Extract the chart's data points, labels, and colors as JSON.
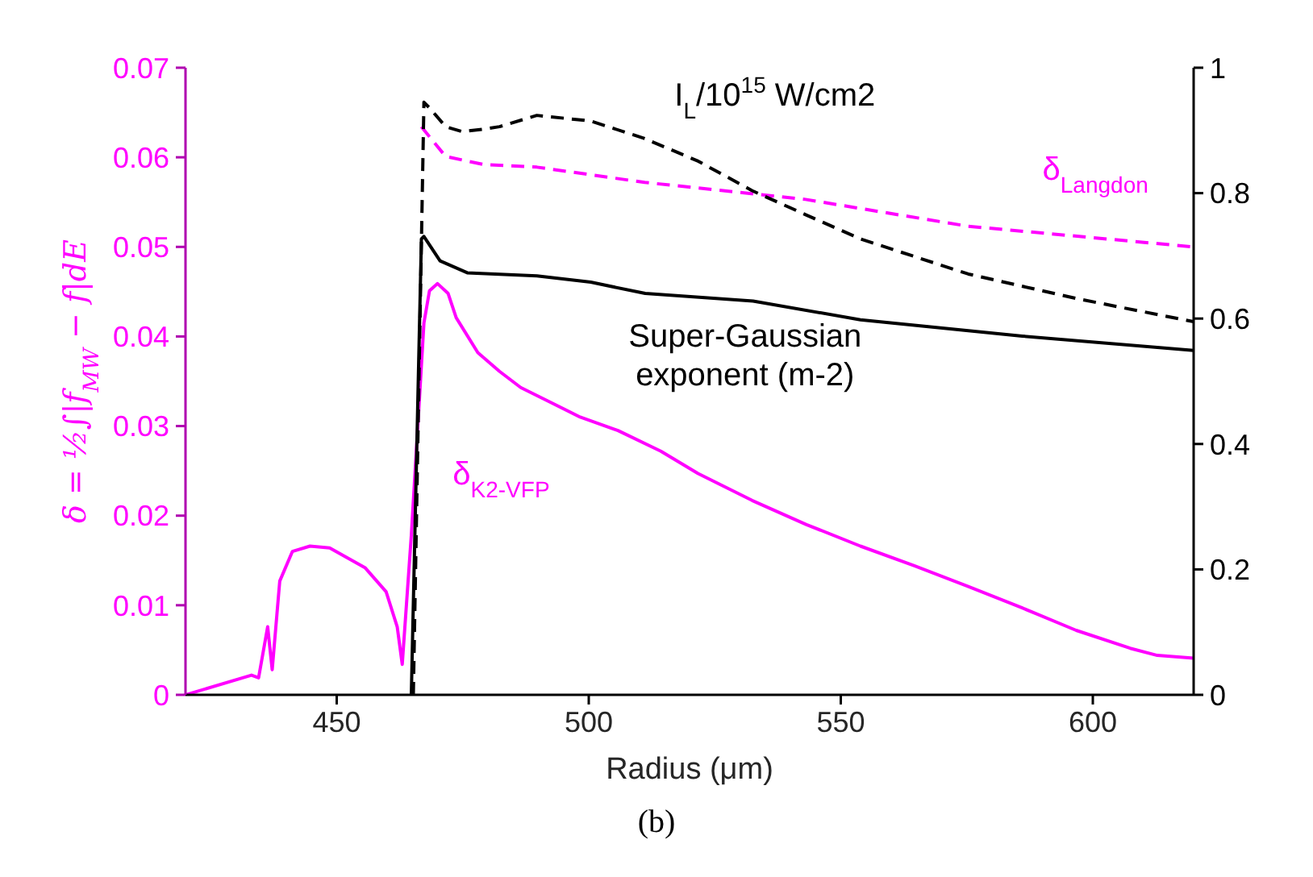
{
  "chart_data": {
    "type": "line",
    "xlabel": "Radius (μm)",
    "ylabel": "δ = ½∫|f$_{MW}$ − f|dE",
    "xlim": [
      420,
      620
    ],
    "xticks": [
      450,
      500,
      550,
      600
    ],
    "ylim": [
      0,
      0.07
    ],
    "yticks": [
      0,
      0.01,
      0.02,
      0.03,
      0.04,
      0.05,
      0.06,
      0.07
    ],
    "y2lim": [
      0,
      1
    ],
    "y2ticks": [
      0,
      0.2,
      0.4,
      0.6,
      0.8,
      1
    ],
    "series": [
      {
        "name": "δ$_{K2-VFP}$",
        "color": "#ff00ff",
        "line_style": "solid",
        "x": [
          420,
          433.1,
          434.5,
          436.3,
          437.2,
          438.7,
          441.2,
          444.7,
          448.6,
          455.6,
          459.8,
          462,
          463,
          464.8,
          467.3,
          468.4,
          470,
          472.1,
          473.7,
          478,
          482.3,
          486.5,
          491.9,
          498.3,
          505.8,
          514.3,
          521.7,
          532.4,
          543.2,
          553.9,
          564.6,
          575.3,
          586,
          596.7,
          607.4,
          612.8,
          620
        ],
        "values": [
          0,
          0.0022,
          0.0019,
          0.0076,
          0.0028,
          0.0127,
          0.016,
          0.0166,
          0.0164,
          0.0142,
          0.0115,
          0.0076,
          0.0034,
          0.0178,
          0.0415,
          0.0451,
          0.0459,
          0.0448,
          0.0421,
          0.0382,
          0.0361,
          0.0343,
          0.0328,
          0.031,
          0.0295,
          0.0272,
          0.0247,
          0.0217,
          0.019,
          0.0166,
          0.0144,
          0.0121,
          0.0097,
          0.0072,
          0.0052,
          0.0044,
          0.0041
        ]
      },
      {
        "name": "δ$_{Langdon}$",
        "color": "#ff00ff",
        "line_style": "dashed",
        "x": [
          466.8,
          471.6,
          479.1,
          489.7,
          511.1,
          543,
          575.3,
          620
        ],
        "values": [
          0.0634,
          0.0601,
          0.0592,
          0.0589,
          0.0572,
          0.0553,
          0.0523,
          0.05
        ]
      },
      {
        "name": "I$_{L}$/10$^{15}$ W/cm2",
        "color": "#000000",
        "line_style": "dashed",
        "axis": "y2",
        "x": [
          465.2,
          467.3,
          468.4,
          471.6,
          474.9,
          479.1,
          482.3,
          489.7,
          500.4,
          511.1,
          521.7,
          532.4,
          543.2,
          553.9,
          575.3,
          596.7,
          620
        ],
        "values": [
          0,
          0.945,
          0.936,
          0.906,
          0.898,
          0.902,
          0.906,
          0.924,
          0.915,
          0.887,
          0.851,
          0.804,
          0.765,
          0.727,
          0.671,
          0.632,
          0.595
        ]
      },
      {
        "name": "Super-Gaussian exponent (m-2)",
        "color": "#000000",
        "line_style": "solid",
        "axis": "y2",
        "x": [
          464.8,
          466.8,
          467.3,
          470.5,
          475.9,
          489.7,
          500.4,
          511.2,
          532.6,
          553.9,
          586,
          620
        ],
        "values": [
          0,
          0.727,
          0.731,
          0.692,
          0.673,
          0.668,
          0.658,
          0.64,
          0.628,
          0.598,
          0.572,
          0.549
        ]
      }
    ],
    "annotations": [
      "(b)"
    ]
  }
}
